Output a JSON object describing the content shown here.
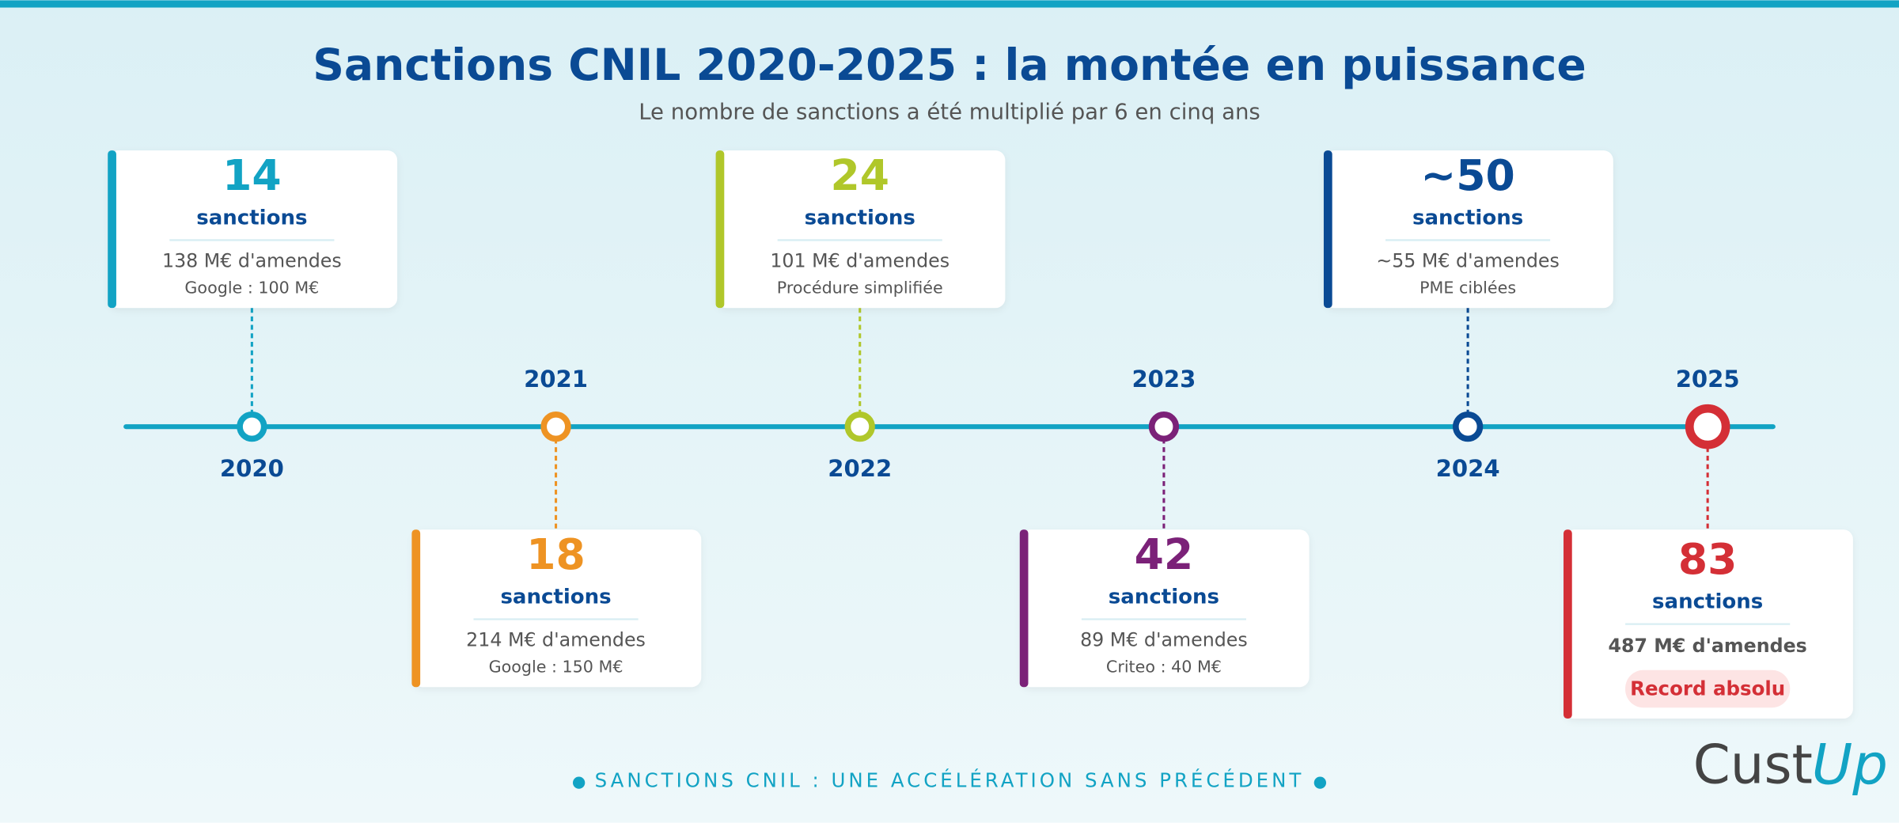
{
  "header": {
    "title": "Sanctions CNIL 2020-2025 : la montée en puissance",
    "subtitle": "Le nombre de sanctions a été multiplié par 6 en cinq ans"
  },
  "events": [
    {
      "year": "2020",
      "count": "14",
      "unit": "sanctions",
      "amount": "138 M€ d'amendes",
      "note": "Google : 100 M€"
    },
    {
      "year": "2021",
      "count": "18",
      "unit": "sanctions",
      "amount": "214 M€ d'amendes",
      "note": "Google : 150 M€"
    },
    {
      "year": "2022",
      "count": "24",
      "unit": "sanctions",
      "amount": "101 M€ d'amendes",
      "note": "Procédure simplifiée"
    },
    {
      "year": "2023",
      "count": "42",
      "unit": "sanctions",
      "amount": "89 M€ d'amendes",
      "note": "Criteo : 40 M€"
    },
    {
      "year": "2024",
      "count": "~50",
      "unit": "sanctions",
      "amount": "~55 M€ d'amendes",
      "note": "PME ciblées"
    },
    {
      "year": "2025",
      "count": "83",
      "unit": "sanctions",
      "amount": "487 M€ d'amendes",
      "badge": "Record absolu"
    }
  ],
  "footer": "SANCTIONS CNIL : UNE ACCÉLÉRATION SANS PRÉCÉDENT",
  "logo": {
    "part1": "Cust",
    "part2": "Up"
  }
}
